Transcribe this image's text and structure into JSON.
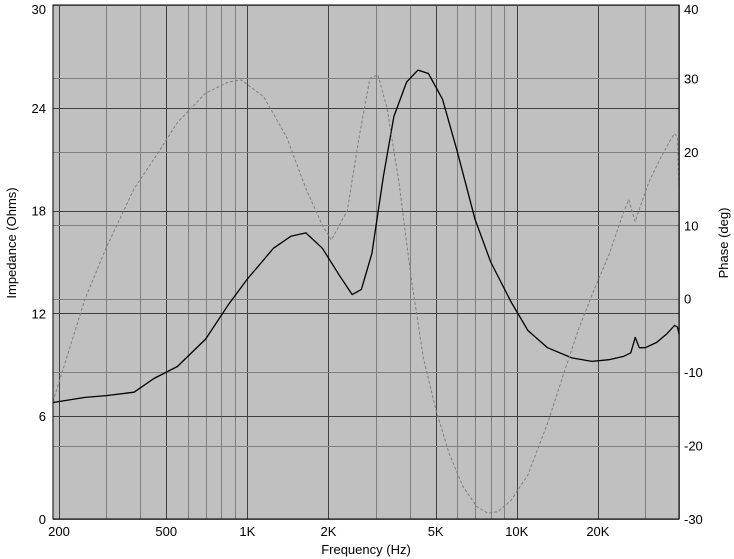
{
  "chart_data": {
    "type": "line",
    "xlabel": "Frequency (Hz)",
    "ylabel_left": "Impedance (Ohms)",
    "ylabel_right": "Phase (deg)",
    "x_scale": "log",
    "xlim": [
      190,
      40000
    ],
    "ylim_left": [
      0,
      30
    ],
    "ylim_right": [
      -30,
      40
    ],
    "grid": true,
    "plot_background": "#c0c0c0",
    "x_ticks": [
      {
        "value": 200,
        "label": "200"
      },
      {
        "value": 500,
        "label": "500"
      },
      {
        "value": 1000,
        "label": "1K"
      },
      {
        "value": 2000,
        "label": "2K"
      },
      {
        "value": 5000,
        "label": "5K"
      },
      {
        "value": 10000,
        "label": "10K"
      },
      {
        "value": 20000,
        "label": "20K"
      }
    ],
    "x_minor_gridlines": [
      300,
      400,
      600,
      700,
      800,
      900,
      3000,
      4000,
      6000,
      7000,
      8000,
      9000,
      30000,
      40000
    ],
    "y_left_ticks": [
      0,
      6,
      12,
      18,
      24,
      30
    ],
    "y_right_ticks": [
      -30,
      -20,
      -10,
      0,
      10,
      20,
      30,
      40
    ],
    "series": [
      {
        "axis": "left",
        "color": "#000000",
        "style": "solid",
        "points": [
          [
            190,
            6.8
          ],
          [
            250,
            7.1
          ],
          [
            300,
            7.2
          ],
          [
            380,
            7.4
          ],
          [
            450,
            8.2
          ],
          [
            550,
            8.9
          ],
          [
            700,
            10.5
          ],
          [
            850,
            12.5
          ],
          [
            1000,
            14.0
          ],
          [
            1250,
            15.8
          ],
          [
            1450,
            16.5
          ],
          [
            1650,
            16.7
          ],
          [
            1900,
            15.8
          ],
          [
            2200,
            14.2
          ],
          [
            2450,
            13.1
          ],
          [
            2650,
            13.4
          ],
          [
            2900,
            15.5
          ],
          [
            3200,
            20.0
          ],
          [
            3500,
            23.5
          ],
          [
            3900,
            25.5
          ],
          [
            4300,
            26.2
          ],
          [
            4700,
            26.0
          ],
          [
            5300,
            24.5
          ],
          [
            6000,
            21.5
          ],
          [
            7000,
            17.5
          ],
          [
            8000,
            15.0
          ],
          [
            9500,
            12.7
          ],
          [
            11000,
            11.0
          ],
          [
            13000,
            10.0
          ],
          [
            16000,
            9.4
          ],
          [
            19000,
            9.2
          ],
          [
            22000,
            9.3
          ],
          [
            25000,
            9.5
          ],
          [
            26500,
            9.7
          ],
          [
            27500,
            10.6
          ],
          [
            28500,
            10.0
          ],
          [
            30000,
            10.0
          ],
          [
            33000,
            10.3
          ],
          [
            36000,
            10.8
          ],
          [
            38500,
            11.3
          ],
          [
            39500,
            11.2
          ],
          [
            40000,
            10.8
          ]
        ]
      },
      {
        "axis": "right",
        "color": "#808080",
        "style": "dashed",
        "points": [
          [
            190,
            -14
          ],
          [
            250,
            0
          ],
          [
            300,
            7
          ],
          [
            380,
            15
          ],
          [
            450,
            19
          ],
          [
            550,
            24
          ],
          [
            700,
            28
          ],
          [
            850,
            29.5
          ],
          [
            950,
            29.8
          ],
          [
            1150,
            27.5
          ],
          [
            1400,
            22
          ],
          [
            1650,
            15
          ],
          [
            1900,
            10
          ],
          [
            2050,
            8
          ],
          [
            2350,
            12
          ],
          [
            2600,
            22
          ],
          [
            2850,
            30
          ],
          [
            3050,
            30.5
          ],
          [
            3300,
            26
          ],
          [
            3650,
            16
          ],
          [
            4050,
            3
          ],
          [
            4500,
            -8
          ],
          [
            5000,
            -15
          ],
          [
            5600,
            -21
          ],
          [
            6300,
            -25.5
          ],
          [
            7100,
            -28.3
          ],
          [
            7800,
            -29.2
          ],
          [
            8500,
            -29
          ],
          [
            9500,
            -27.5
          ],
          [
            11000,
            -24
          ],
          [
            13000,
            -17
          ],
          [
            15000,
            -10
          ],
          [
            17000,
            -4
          ],
          [
            19500,
            1.5
          ],
          [
            22000,
            6
          ],
          [
            24500,
            11
          ],
          [
            26000,
            13.5
          ],
          [
            27500,
            10.5
          ],
          [
            29000,
            13
          ],
          [
            31000,
            16
          ],
          [
            34000,
            19
          ],
          [
            37000,
            21.5
          ],
          [
            38500,
            22.5
          ],
          [
            39500,
            22
          ],
          [
            40000,
            15
          ]
        ]
      }
    ]
  }
}
